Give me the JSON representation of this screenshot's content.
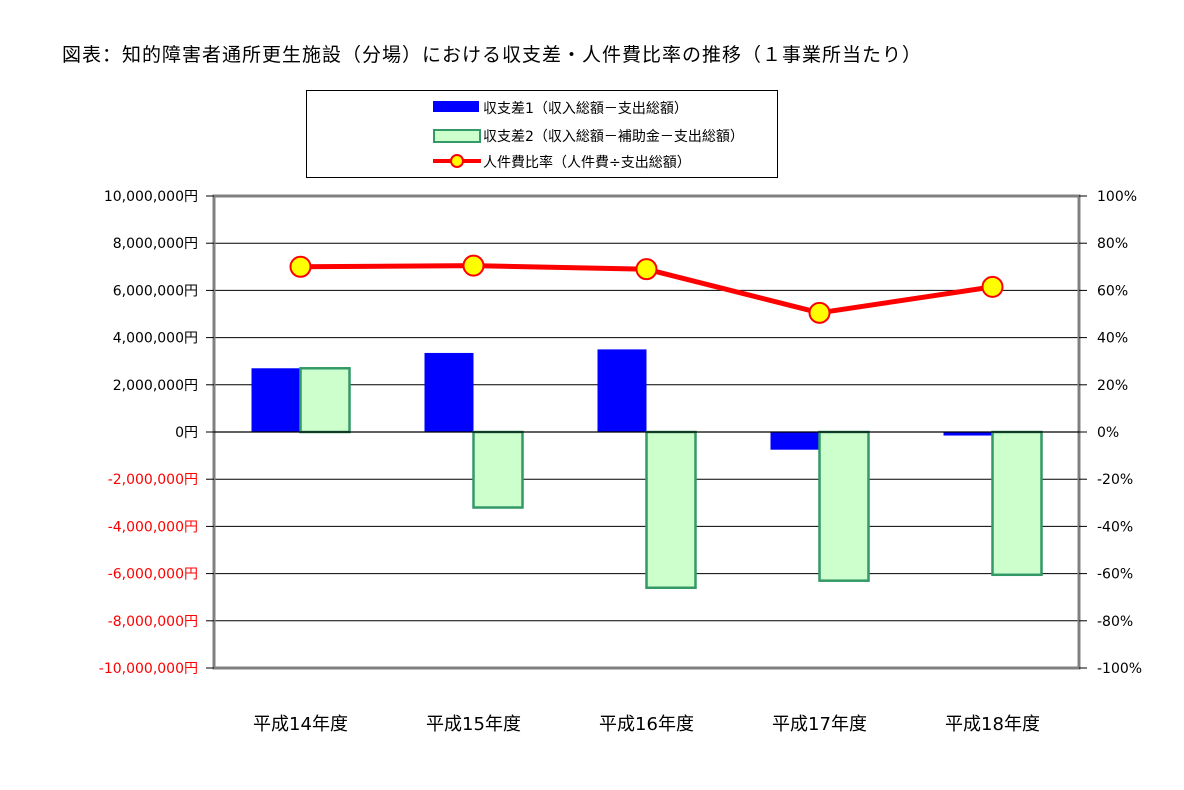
{
  "title": "図表：知的障害者通所更生施設（分場）における収支差・人件費比率の推移（１事業所当たり）",
  "colors": {
    "bar1_fill": "#0000ff",
    "bar2_fill": "#ccffcc",
    "bar2_stroke": "#339966",
    "line": "#ff0000",
    "marker_fill": "#ffff00",
    "negative_tick": "#ff0000",
    "positive_tick": "#000000"
  },
  "chart_data": {
    "type": "bar",
    "categories": [
      "平成14年度",
      "平成15年度",
      "平成16年度",
      "平成17年度",
      "平成18年度"
    ],
    "series": [
      {
        "name": "収支差1（収入総額－支出総額）",
        "type": "bar",
        "axis": "left",
        "values": [
          2700000,
          3350000,
          3500000,
          -750000,
          -150000
        ]
      },
      {
        "name": "収支差2（収入総額－補助金－支出総額）",
        "type": "bar",
        "axis": "left",
        "values": [
          2700000,
          -3200000,
          -6600000,
          -6300000,
          -6050000
        ]
      },
      {
        "name": "人件費比率（人件費÷支出総額）",
        "type": "line",
        "axis": "right",
        "values": [
          70.0,
          70.5,
          69.0,
          50.5,
          61.5
        ]
      }
    ],
    "y_left": {
      "ylim": [
        -10000000,
        10000000
      ],
      "ticks": [
        10000000,
        8000000,
        6000000,
        4000000,
        2000000,
        0,
        -2000000,
        -4000000,
        -6000000,
        -8000000,
        -10000000
      ],
      "tick_labels": [
        "10,000,000円",
        "8,000,000円",
        "6,000,000円",
        "4,000,000円",
        "2,000,000円",
        "0円",
        "-2,000,000円",
        "-4,000,000円",
        "-6,000,000円",
        "-8,000,000円",
        "-10,000,000円"
      ]
    },
    "y_right": {
      "ylim": [
        -100,
        100
      ],
      "ticks": [
        100,
        80,
        60,
        40,
        20,
        0,
        -20,
        -40,
        -60,
        -80,
        -100
      ],
      "tick_labels": [
        "100%",
        "80%",
        "60%",
        "40%",
        "20%",
        "0%",
        "-20%",
        "-40%",
        "-60%",
        "-80%",
        "-100%"
      ]
    },
    "grid": true,
    "legend_position": "top-center"
  }
}
